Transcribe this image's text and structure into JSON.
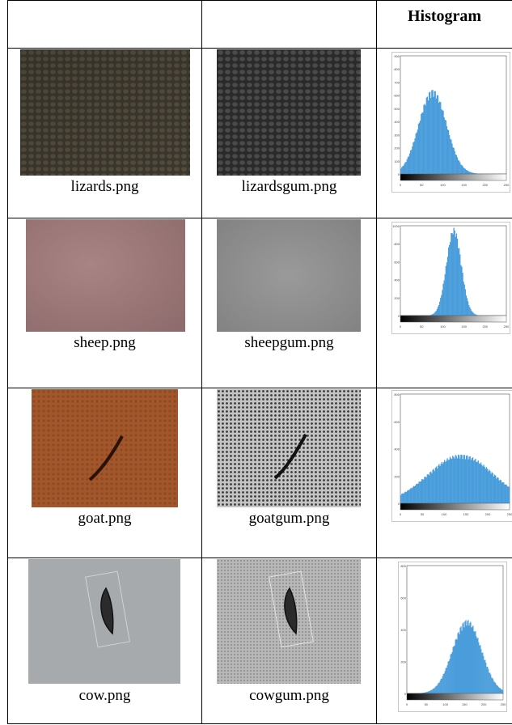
{
  "table": {
    "header": [
      "",
      "",
      "Histogram"
    ],
    "rows": [
      {
        "original": "lizards.png",
        "gum": "lizardsgum.png"
      },
      {
        "original": "sheep.png",
        "gum": "sheepgum.png"
      },
      {
        "original": "goat.png",
        "gum": "goatgum.png"
      },
      {
        "original": "cow.png",
        "gum": "cowgum.png"
      }
    ]
  },
  "histograms": [
    {
      "yticks": [
        "900",
        "800",
        "700",
        "600",
        "500",
        "400",
        "300",
        "200",
        "100",
        "0"
      ],
      "xticks": [
        "0",
        "50",
        "100",
        "150",
        "200",
        "250"
      ]
    },
    {
      "yticks": [
        "1000",
        "800",
        "600",
        "400",
        "200",
        "0"
      ],
      "xticks": [
        "0",
        "50",
        "100",
        "150",
        "200",
        "250"
      ]
    },
    {
      "yticks": [
        "800",
        "600",
        "400",
        "200",
        "0"
      ],
      "xticks": [
        "0",
        "50",
        "100",
        "150",
        "200",
        "250"
      ]
    },
    {
      "yticks": [
        "800",
        "600",
        "400",
        "200",
        "0"
      ],
      "xticks": [
        "0",
        "50",
        "100",
        "150",
        "200",
        "250"
      ]
    }
  ]
}
